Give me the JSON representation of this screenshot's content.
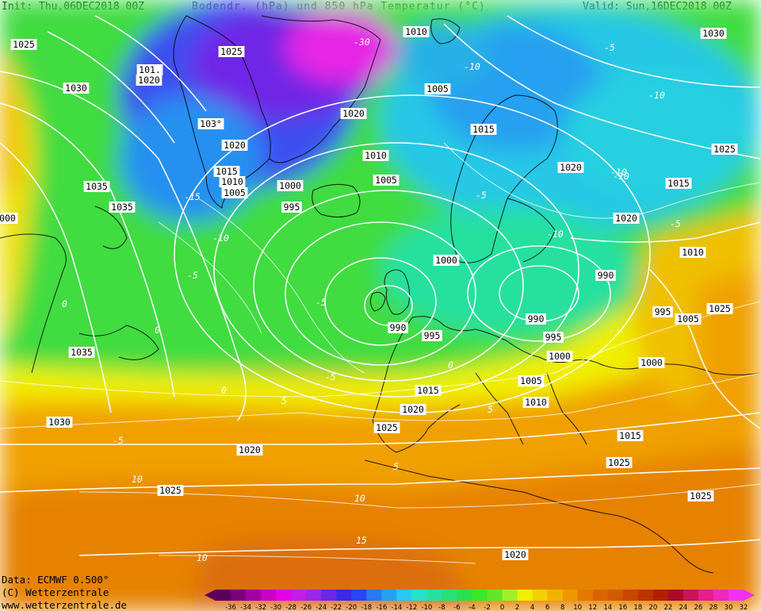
{
  "header": {
    "init": "Init: Thu,06DEC2018 00Z",
    "title": "Bodendr. (hPa) und 850 hPa Temperatur (°C)",
    "valid": "Valid: Sun,16DEC2018 00Z"
  },
  "footer": {
    "data_line": "Data: ECMWF  0.500°",
    "copyright": "(C) Wetterzentrale",
    "url": "www.wetterzentrale.de"
  },
  "colorbar": {
    "ticks": [
      "-36",
      "-34",
      "-32",
      "-30",
      "-28",
      "-26",
      "-24",
      "-22",
      "-20",
      "-18",
      "-16",
      "-14",
      "-12",
      "-10",
      "-8",
      "-6",
      "-4",
      "-2",
      "0",
      "2",
      "4",
      "6",
      "8",
      "10",
      "12",
      "14",
      "16",
      "18",
      "20",
      "22",
      "24",
      "26",
      "28",
      "30",
      "32"
    ],
    "colors": [
      "#5a005a",
      "#7a007a",
      "#a000a0",
      "#c800c8",
      "#e600e6",
      "#c01ee6",
      "#9a28e6",
      "#6a28e6",
      "#3c28e6",
      "#2846f0",
      "#2878f0",
      "#28a0f0",
      "#28c8f0",
      "#28e0c8",
      "#28e0a0",
      "#28e078",
      "#28e050",
      "#3ce628",
      "#64e628",
      "#a0f028",
      "#f0f000",
      "#f0d200",
      "#f0b400",
      "#f09600",
      "#e67800",
      "#dc6400",
      "#d25a00",
      "#c84600",
      "#be3200",
      "#b41e00",
      "#aa0a28",
      "#c8145a",
      "#e61e8c",
      "#f028be",
      "#f032f0"
    ]
  },
  "map": {
    "isobar_labels": [
      "1025",
      "1025",
      "1010",
      "1030",
      "101.",
      "1020",
      "1030",
      "1005",
      "1020",
      "103°",
      "1015",
      "1020",
      "1025",
      "1035",
      "1015",
      "1010",
      "1010",
      "1005",
      "1000",
      "1005",
      "1020",
      "995",
      "1035",
      "1015",
      "1020",
      "1010",
      "1000",
      "990",
      "990",
      "1010",
      "995",
      "1035",
      "1005",
      "995",
      "1020",
      "990",
      "995",
      "1000",
      "1000",
      "1005",
      "1015",
      "1010",
      "1030",
      "1020",
      "1025",
      "1015",
      "1020",
      "1025",
      "1025",
      "1025",
      "1020",
      "1025",
      "1000"
    ],
    "temp_labels": [
      "-30",
      "-10",
      "-5",
      "-10",
      "-15",
      "-10",
      "-5",
      "-10",
      "-5",
      "0",
      "-5",
      "0",
      "0",
      "5",
      "-5",
      "5",
      "10",
      "5",
      "10",
      "15",
      "10",
      "0",
      "-5",
      "-10",
      "-10",
      "-5"
    ]
  }
}
